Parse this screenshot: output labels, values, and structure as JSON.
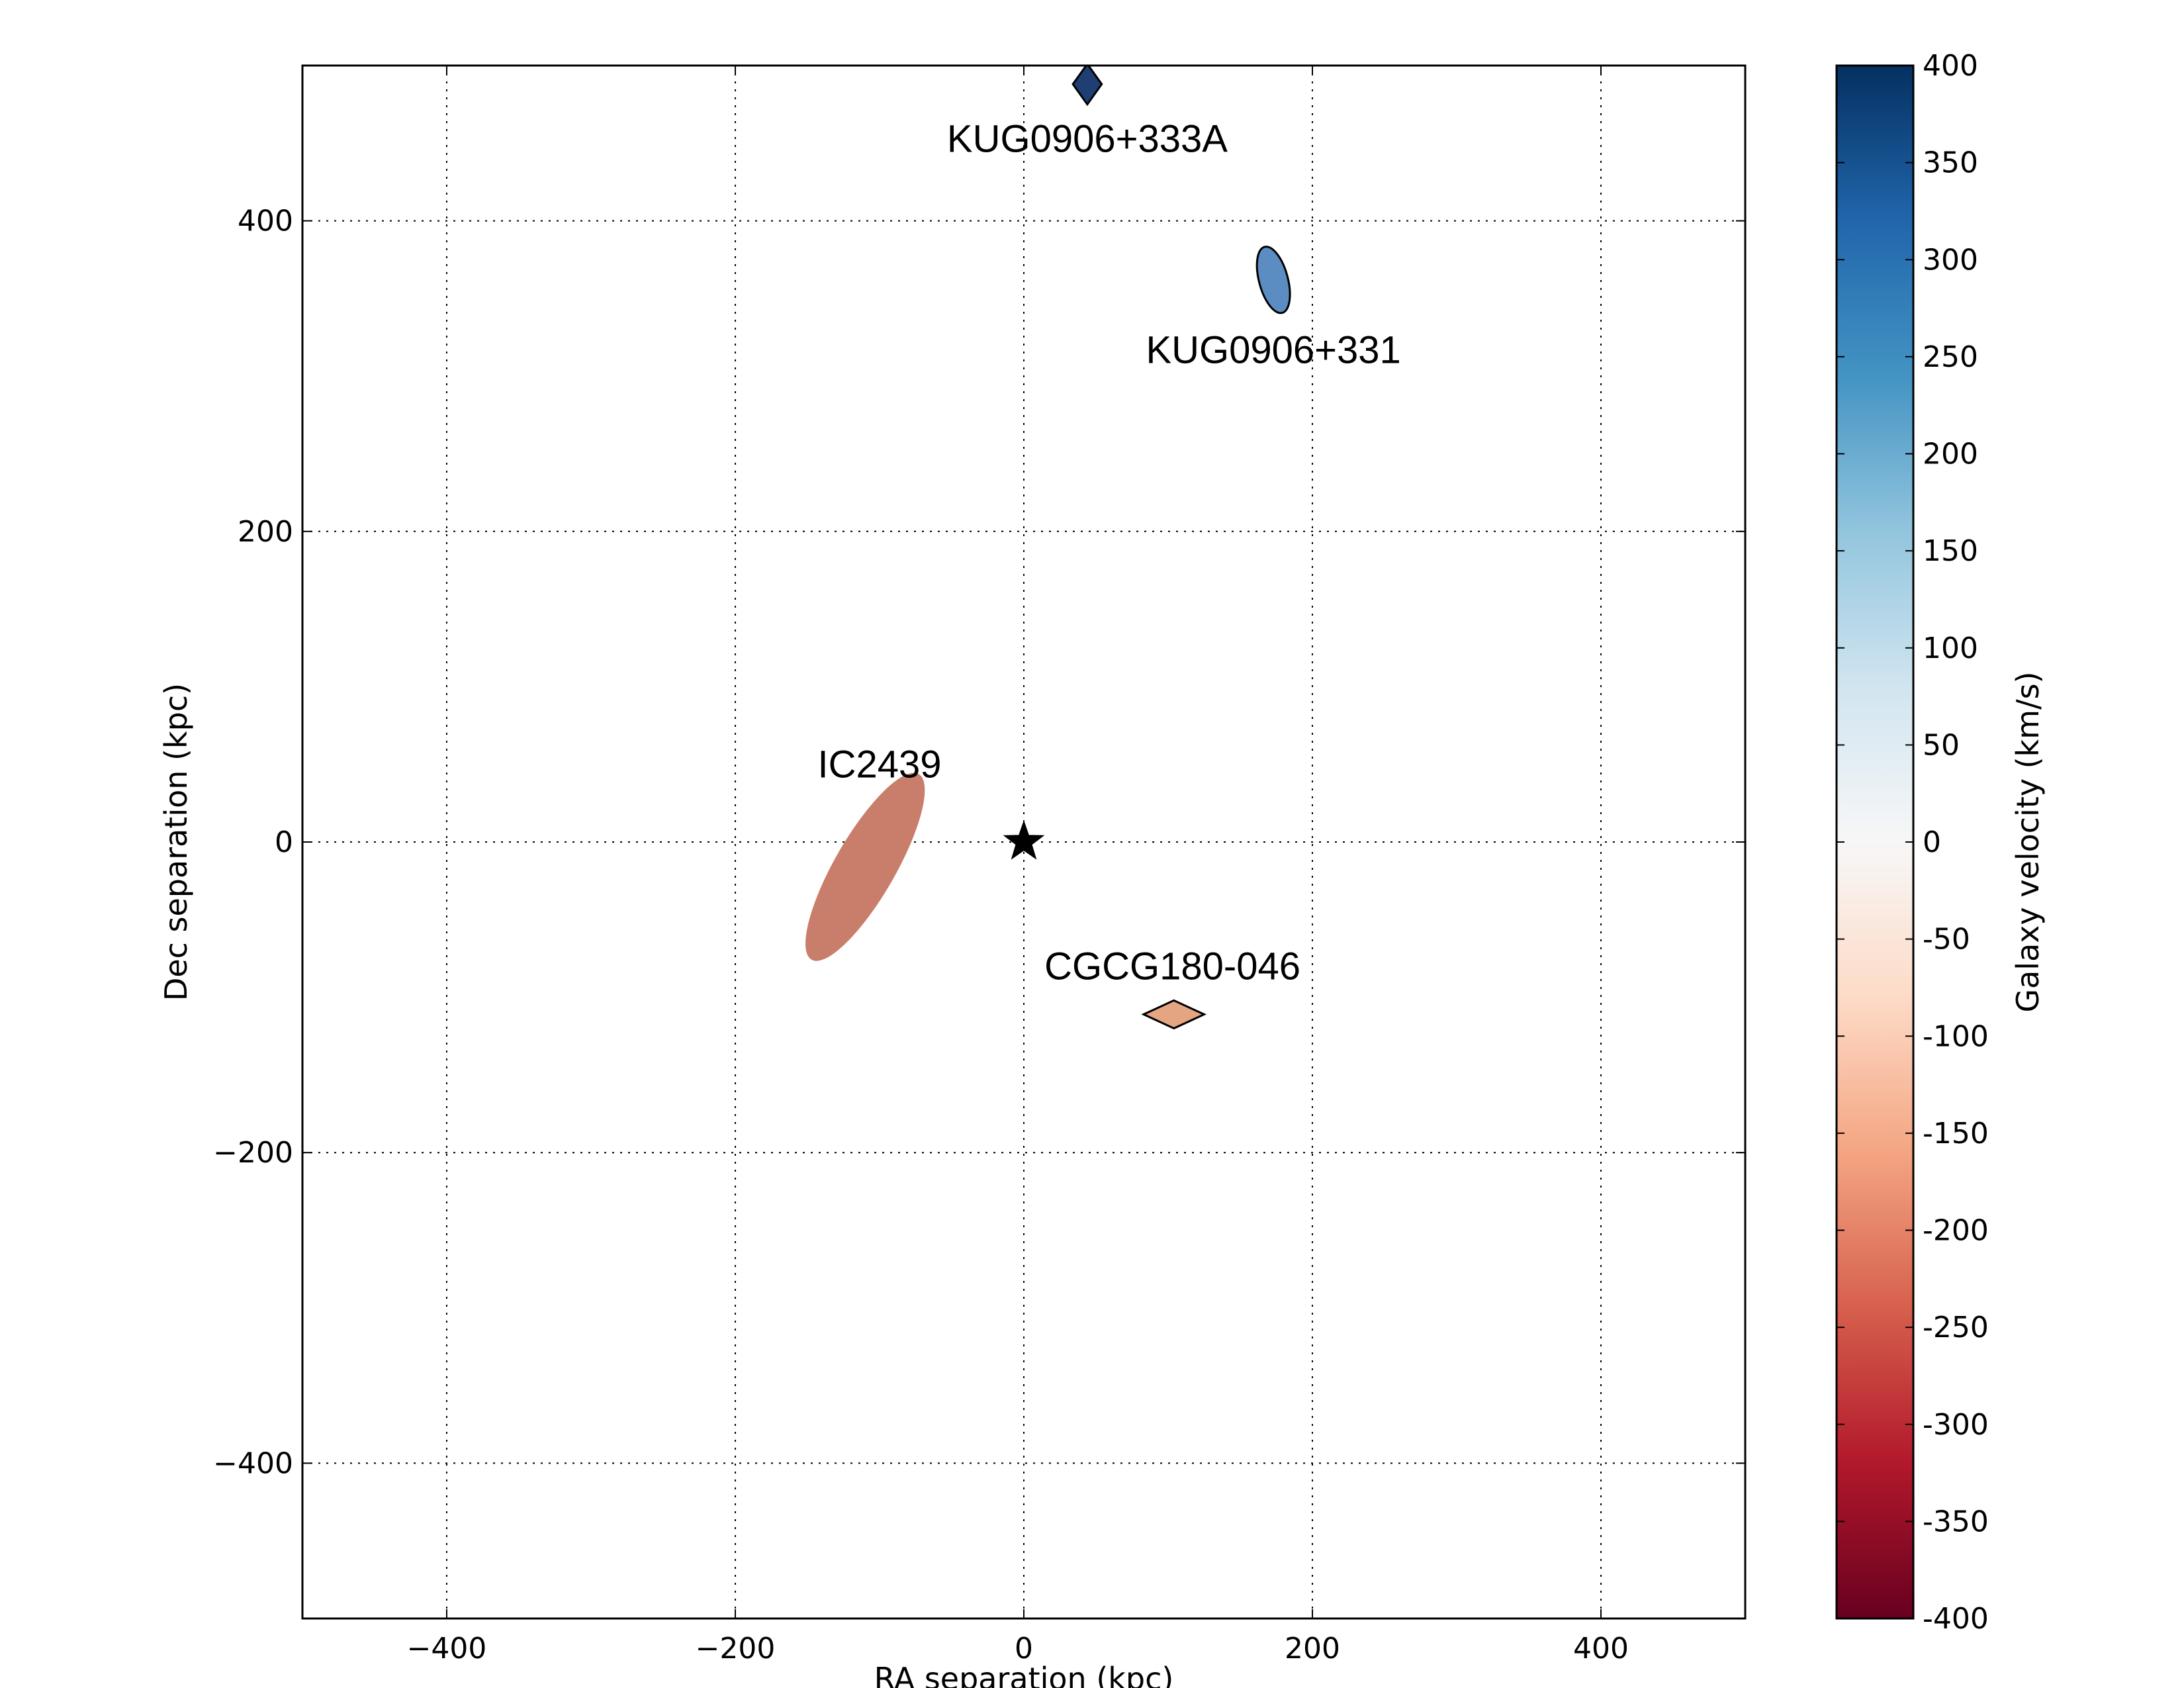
{
  "chart_data": {
    "type": "scatter",
    "title": "",
    "xlabel": "RA separation (kpc)",
    "ylabel": "Dec separation (kpc)",
    "xlim": [
      -500,
      500
    ],
    "ylim": [
      -500,
      500
    ],
    "xticks": [
      -400,
      -200,
      0,
      200,
      400
    ],
    "yticks": [
      -400,
      -200,
      0,
      200,
      400
    ],
    "xtick_labels": [
      "−400",
      "−200",
      "0",
      "200",
      "400"
    ],
    "ytick_labels": [
      "−400",
      "−200",
      "0",
      "200",
      "400"
    ],
    "grid": true,
    "center_marker": {
      "x": 0,
      "y": 0,
      "shape": "star",
      "color": "#000000"
    },
    "galaxies": [
      {
        "name": "KUG0906+333A",
        "x": 44,
        "y": 488,
        "velocity": 380,
        "shape": "diamond",
        "color": "#1f3f73"
      },
      {
        "name": "KUG0906+331",
        "x": 173,
        "y": 362,
        "velocity": 250,
        "shape": "ellipse",
        "color": "#5b8cc2"
      },
      {
        "name": "IC2439",
        "x": -110,
        "y": -16,
        "velocity": -200,
        "shape": "ellipse",
        "color": "#c97d6b"
      },
      {
        "name": "CGCG180-046",
        "x": 104,
        "y": -111,
        "velocity": -150,
        "shape": "diamond",
        "color": "#e4a582"
      }
    ],
    "colorbar": {
      "label": "Galaxy velocity (km/s)",
      "range": [
        -400,
        400
      ],
      "ticks": [
        400,
        350,
        300,
        250,
        200,
        150,
        100,
        50,
        0,
        -50,
        -100,
        -150,
        -200,
        -250,
        -300,
        -350,
        -400
      ],
      "tick_labels": [
        "400",
        "350",
        "300",
        "250",
        "200",
        "150",
        "100",
        "50",
        "0",
        "-50",
        "-100",
        "-150",
        "-200",
        "-250",
        "-300",
        "-350",
        "-400"
      ],
      "colormap": "RdBu",
      "stops": [
        "#67001f",
        "#b2182b",
        "#d6604d",
        "#f4a582",
        "#fddbc7",
        "#f7f7f7",
        "#d1e5f0",
        "#92c5de",
        "#4393c3",
        "#2166ac",
        "#053061"
      ]
    }
  }
}
